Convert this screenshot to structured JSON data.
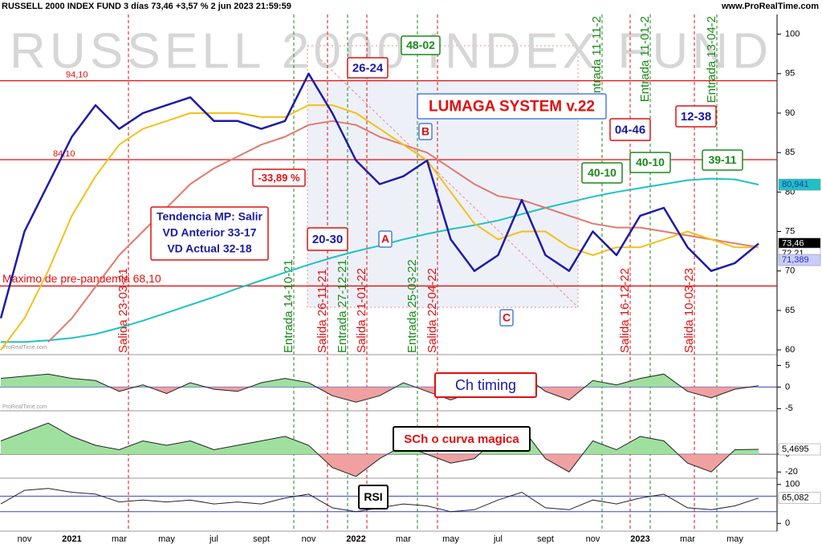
{
  "header": {
    "title": "RUSSELL 2000 INDEX FUND 3 días 73,46 +3,57 % 2 jun 2023 21:59:59",
    "source": "www.ProRealTime.com",
    "small_source": "ProRealTime.com"
  },
  "chart_data": [
    {
      "type": "line",
      "watermark": "RUSSELL 2000 INDEX FUND",
      "categories": [
        null,
        "nov",
        null,
        "2021",
        null,
        "mar",
        null,
        "may",
        null,
        "jul",
        null,
        "sept",
        null,
        "nov",
        null,
        "2022",
        null,
        "mar",
        null,
        "may",
        null,
        "jul",
        null,
        "sept",
        null,
        "nov",
        null,
        "2023",
        null,
        "mar",
        null,
        "may",
        null
      ],
      "series": [
        {
          "color": "#1c1ca8",
          "values": [
            64,
            75,
            81,
            87,
            91,
            88,
            90,
            91,
            92,
            89,
            89,
            88,
            89,
            95,
            90,
            84,
            81,
            82,
            84,
            74,
            70,
            72,
            79,
            72,
            70,
            75,
            72,
            77,
            78,
            73,
            70,
            71,
            73.46
          ]
        },
        {
          "color": "#f2c11a",
          "values": [
            60,
            64,
            70,
            77,
            82,
            86,
            88,
            89,
            90,
            90,
            90,
            89.5,
            89.5,
            91,
            91,
            90,
            88,
            86,
            84,
            80,
            76,
            74,
            75,
            75,
            73,
            72,
            73,
            73,
            74,
            75,
            74,
            73,
            73
          ]
        },
        {
          "color": "#e07a6e",
          "values": [
            null,
            null,
            61,
            64,
            68,
            72,
            75,
            78,
            81,
            83,
            84.5,
            86,
            87,
            88.5,
            89,
            88.5,
            87,
            86,
            85,
            83,
            81,
            79.5,
            79,
            78,
            77,
            76,
            75.5,
            75.5,
            75,
            74.5,
            74,
            73.5,
            73
          ]
        },
        {
          "color": "#1fc2c2",
          "values": [
            61,
            61,
            61.2,
            61.5,
            62,
            62.8,
            63.7,
            64.7,
            65.7,
            66.7,
            67.8,
            68.8,
            69.8,
            70.8,
            71.7,
            72.5,
            73.2,
            74,
            74.7,
            75.3,
            75.8,
            76.4,
            77.2,
            78,
            78.7,
            79.4,
            80,
            80.5,
            81,
            81.5,
            81.7,
            81.6,
            80.941
          ]
        }
      ],
      "ylim": [
        59.4,
        102.5
      ],
      "yticks": [
        60,
        65,
        70,
        75,
        80,
        85,
        90,
        95,
        100
      ],
      "hlines": [
        {
          "value": 94.1,
          "label": "94,10"
        },
        {
          "value": 84.1,
          "label": "84,10"
        },
        {
          "value": 68.1,
          "label": "Maximo de pre-pandemia 68,10"
        }
      ],
      "last_labels": [
        {
          "value": 80.941,
          "label": "80,941",
          "color": "#1fc2c2"
        },
        {
          "value": 73.46,
          "label": "73,46",
          "color": "#000000"
        },
        {
          "value": 72.21,
          "label": "72,21",
          "color": "#ffffff"
        },
        {
          "value": 71.389,
          "label": "71,389",
          "color": "#c8ccff"
        }
      ],
      "signals": [
        {
          "label": "Salida 23-03-21",
          "color": "#e01010"
        },
        {
          "label": "Entrada 14-10-21",
          "color": "#1a8a1a"
        },
        {
          "label": "Salida 26-11-21",
          "color": "#e01010"
        },
        {
          "label": "Entrada 27-12-21",
          "color": "#1a8a1a"
        },
        {
          "label": "Salida 21-01-22",
          "color": "#e01010"
        },
        {
          "label": "Entrada 25-03-22",
          "color": "#1a8a1a"
        },
        {
          "label": "Salida 22-04-22",
          "color": "#e01010"
        },
        {
          "label": "Entrada 11-11-2",
          "color": "#1a8a1a"
        },
        {
          "label": "Salida 16-12-22",
          "color": "#e01010"
        },
        {
          "label": "Entrada 11-01-2",
          "color": "#1a8a1a"
        },
        {
          "label": "Salida 10-03-23",
          "color": "#e01010"
        },
        {
          "label": "Entrada 13-04-2",
          "color": "#1a8a1a"
        }
      ],
      "annotations": [
        "26-24",
        "48-02",
        "LUMAGA SYSTEM v.22",
        "B",
        "A",
        "C",
        "04-46",
        "12-38",
        "40-10",
        "40-10",
        "39-11",
        "-33,89 %",
        "20-30"
      ],
      "trend_box": [
        "Tendencia MP: Salir",
        "VD Anterior 33-17",
        "VD Actual 32-18"
      ]
    },
    {
      "type": "area",
      "title": "Ch timing",
      "values": [
        2,
        2.5,
        3,
        2,
        1.5,
        -1,
        0.5,
        -1.5,
        1,
        -0.5,
        -1,
        1,
        2,
        1,
        -2,
        -3.5,
        -2,
        1,
        -1,
        -3,
        -1,
        1,
        3,
        -1,
        -3,
        1.5,
        0.5,
        2,
        3,
        -1,
        -2.5,
        -0.5,
        0.3
      ],
      "ylim": [
        -5.5,
        7.5
      ],
      "yticks": [
        -5,
        0,
        5
      ]
    },
    {
      "type": "area",
      "title": "SCh o curva magica",
      "values": [
        15,
        25,
        35,
        20,
        10,
        5,
        15,
        10,
        15,
        5,
        10,
        15,
        20,
        10,
        -15,
        -25,
        -5,
        10,
        0,
        -10,
        -5,
        20,
        30,
        -5,
        -20,
        15,
        5,
        20,
        15,
        -10,
        -20,
        5,
        5.4695
      ],
      "ylim": [
        -27,
        47
      ],
      "yticks": [
        -20,
        0
      ],
      "last_label": {
        "value": 5.4695,
        "label": "5,4695"
      }
    },
    {
      "type": "line",
      "title": "RSI",
      "values": [
        50,
        85,
        90,
        80,
        75,
        55,
        60,
        55,
        60,
        50,
        55,
        50,
        65,
        75,
        40,
        30,
        40,
        50,
        45,
        30,
        35,
        60,
        80,
        40,
        35,
        60,
        50,
        65,
        75,
        40,
        35,
        45,
        65.082
      ],
      "ylim": [
        -20,
        112
      ],
      "yticks": [
        0,
        100
      ],
      "bands": [
        30,
        70
      ],
      "last_label": {
        "value": 65.082,
        "label": "65,082"
      }
    }
  ]
}
